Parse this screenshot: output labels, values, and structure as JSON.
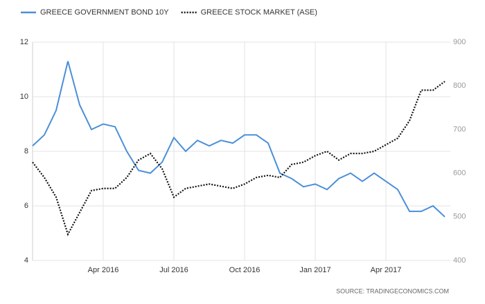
{
  "chart_data": {
    "type": "line",
    "categories": [
      null,
      null,
      null,
      null,
      null,
      null,
      "Apr 2016",
      null,
      null,
      null,
      null,
      null,
      "Jul 2016",
      null,
      null,
      null,
      null,
      null,
      "Oct 2016",
      null,
      null,
      null,
      null,
      null,
      "Jan 2017",
      null,
      null,
      null,
      null,
      null,
      "Apr 2017",
      null,
      null,
      null,
      null,
      null
    ],
    "series": [
      {
        "name": "GREECE GOVERNMENT BOND 10Y",
        "color": "#4a8fd8",
        "axis": "y",
        "values": [
          8.2,
          8.6,
          9.5,
          11.3,
          9.7,
          8.8,
          9.0,
          8.9,
          8.0,
          7.3,
          7.2,
          7.6,
          8.5,
          8.0,
          8.4,
          8.2,
          8.4,
          8.3,
          8.6,
          8.6,
          8.3,
          7.2,
          7.0,
          6.7,
          6.8,
          6.6,
          7.0,
          7.2,
          6.9,
          7.2,
          6.9,
          6.6,
          5.8,
          5.8,
          6.0,
          5.6
        ]
      },
      {
        "name": "GREECE STOCK MARKET (ASE)",
        "color": "#111111",
        "axis": "y2",
        "values": [
          625,
          590,
          545,
          460,
          510,
          560,
          565,
          565,
          590,
          630,
          645,
          610,
          545,
          565,
          570,
          575,
          570,
          565,
          575,
          590,
          595,
          590,
          620,
          625,
          640,
          650,
          630,
          645,
          645,
          650,
          665,
          680,
          720,
          790,
          790,
          810
        ]
      }
    ],
    "ylim": [
      4,
      12
    ],
    "yticks": [
      4,
      6,
      8,
      10,
      12
    ],
    "y2lim": [
      400,
      900
    ],
    "y2ticks": [
      400,
      500,
      600,
      700,
      800,
      900
    ],
    "grid": true,
    "legend": "top-left",
    "source": "SOURCE: TRADINGECONOMICS.COM"
  }
}
